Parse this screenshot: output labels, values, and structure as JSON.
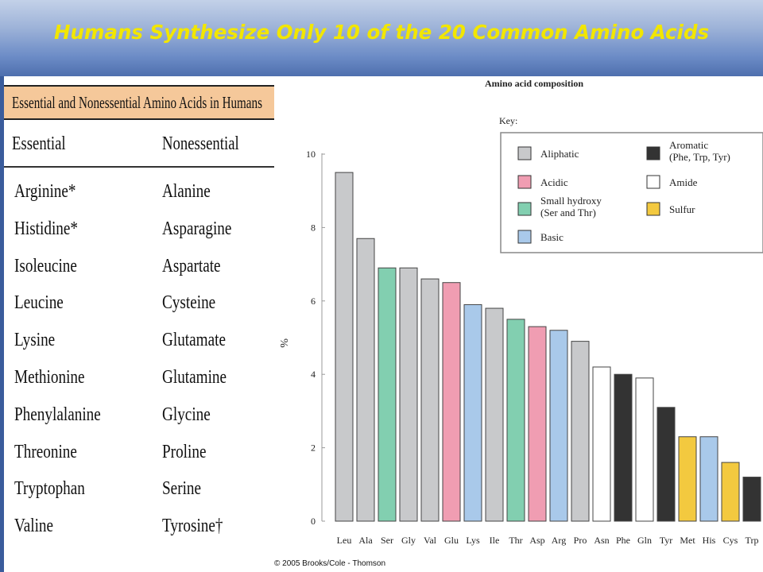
{
  "slide": {
    "title": "Humans Synthesize Only 10 of the 20 Common Amino Acids",
    "copyright": "© 2005 Brooks/Cole - Thomson"
  },
  "table": {
    "title": "Essential and Nonessential Amino Acids in Humans",
    "headers": [
      "Essential",
      "Nonessential"
    ],
    "rows": [
      [
        "Arginine*",
        "Alanine"
      ],
      [
        "Histidine*",
        "Asparagine"
      ],
      [
        "Isoleucine",
        "Aspartate"
      ],
      [
        "Leucine",
        "Cysteine"
      ],
      [
        "Lysine",
        "Glutamate"
      ],
      [
        "Methionine",
        "Glutamine"
      ],
      [
        "Phenylalanine",
        "Glycine"
      ],
      [
        "Threonine",
        "Proline"
      ],
      [
        "Tryptophan",
        "Serine"
      ],
      [
        "Valine",
        "Tyrosine†"
      ]
    ]
  },
  "chart_data": {
    "type": "bar",
    "title": "Amino acid composition",
    "xlabel": "",
    "ylabel": "%",
    "ylim": [
      0,
      10
    ],
    "yticks": [
      0,
      2,
      4,
      6,
      8,
      10
    ],
    "grid": false,
    "categories": [
      "Leu",
      "Ala",
      "Ser",
      "Gly",
      "Val",
      "Glu",
      "Lys",
      "Ile",
      "Thr",
      "Asp",
      "Arg",
      "Pro",
      "Asn",
      "Phe",
      "Gln",
      "Tyr",
      "Met",
      "His",
      "Cys",
      "Trp"
    ],
    "values": [
      9.5,
      7.7,
      6.9,
      6.9,
      6.6,
      6.5,
      5.9,
      5.8,
      5.5,
      5.3,
      5.2,
      4.9,
      4.2,
      4.0,
      3.9,
      3.1,
      2.3,
      2.3,
      1.6,
      1.2
    ],
    "groups": [
      "Aliphatic",
      "Aliphatic",
      "Small hydroxy",
      "Aliphatic",
      "Aliphatic",
      "Acidic",
      "Basic",
      "Aliphatic",
      "Small hydroxy",
      "Acidic",
      "Basic",
      "Aliphatic",
      "Amide",
      "Aromatic",
      "Amide",
      "Aromatic",
      "Sulfur",
      "Basic",
      "Sulfur",
      "Aromatic"
    ],
    "key_title": "Key:",
    "legend": [
      {
        "label": "Aliphatic",
        "color": "#c8c9cb"
      },
      {
        "label": "Acidic",
        "color": "#f09db2"
      },
      {
        "label": "Small hydroxy\n(Ser and Thr)",
        "color": "#82cfb0"
      },
      {
        "label": "Basic",
        "color": "#a9c9ea"
      },
      {
        "label": "Aromatic\n(Phe, Trp, Tyr)",
        "color": "#333333"
      },
      {
        "label": "Amide",
        "color": "#ffffff"
      },
      {
        "label": "Sulfur",
        "color": "#f3c93f"
      }
    ],
    "group_colors": {
      "Aliphatic": "#c8c9cb",
      "Acidic": "#f09db2",
      "Small hydroxy": "#82cfb0",
      "Basic": "#a9c9ea",
      "Aromatic": "#333333",
      "Amide": "#ffffff",
      "Sulfur": "#f3c93f"
    }
  }
}
